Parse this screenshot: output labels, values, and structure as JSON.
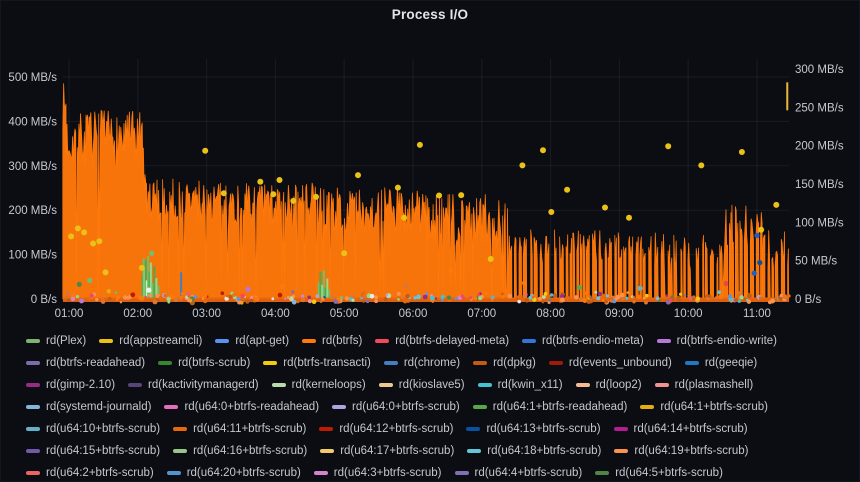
{
  "panel": {
    "title": "Process I/O"
  },
  "chart_data": {
    "type": "area",
    "title": "Process I/O",
    "x_unit": "time",
    "x_ticks": [
      {
        "t": 1,
        "label": "01:00"
      },
      {
        "t": 2,
        "label": "02:00"
      },
      {
        "t": 3,
        "label": "03:00"
      },
      {
        "t": 4,
        "label": "04:00"
      },
      {
        "t": 5,
        "label": "05:00"
      },
      {
        "t": 6,
        "label": "06:00"
      },
      {
        "t": 7,
        "label": "07:00"
      },
      {
        "t": 8,
        "label": "08:00"
      },
      {
        "t": 9,
        "label": "09:00"
      },
      {
        "t": 10,
        "label": "10:00"
      },
      {
        "t": 11,
        "label": "11:00"
      }
    ],
    "x_range_hours": [
      0.91,
      11.47
    ],
    "grid": true,
    "y_axis_left": {
      "unit": "MB/s",
      "max": 520,
      "ticks": [
        {
          "v": 500,
          "label": "500 MB/s"
        },
        {
          "v": 400,
          "label": "400 MB/s"
        },
        {
          "v": 300,
          "label": "300 MB/s"
        },
        {
          "v": 200,
          "label": "200 MB/s"
        },
        {
          "v": 100,
          "label": "100 MB/s"
        },
        {
          "v": 0,
          "label": "0 B/s"
        }
      ]
    },
    "y_axis_right": {
      "unit": "MB/s",
      "max": 320,
      "ticks": [
        {
          "v": 300,
          "label": "300 MB/s"
        },
        {
          "v": 250,
          "label": "250 MB/s"
        },
        {
          "v": 200,
          "label": "200 MB/s"
        },
        {
          "v": 150,
          "label": "150 MB/s"
        },
        {
          "v": 100,
          "label": "100 MB/s"
        },
        {
          "v": 50,
          "label": "50 MB/s"
        },
        {
          "v": 0,
          "label": "0 B/s"
        }
      ]
    },
    "main_series": {
      "name": "rd(btrfs)",
      "color": "#FF780A",
      "axis": "left",
      "segments": [
        {
          "from": 0.91,
          "to": 0.96,
          "min": 380,
          "max": 488
        },
        {
          "from": 0.96,
          "to": 2.07,
          "min": 295,
          "max": 425,
          "dip": 0.04
        },
        {
          "from": 2.07,
          "to": 2.13,
          "min": 120,
          "max": 345,
          "dip": 0.1
        },
        {
          "from": 2.13,
          "to": 3.2,
          "min": 165,
          "max": 272,
          "dip": 0.07
        },
        {
          "from": 3.2,
          "to": 4.6,
          "min": 155,
          "max": 262,
          "dip": 0.07
        },
        {
          "from": 4.6,
          "to": 6.2,
          "min": 145,
          "max": 252,
          "dip": 0.08
        },
        {
          "from": 6.2,
          "to": 7.4,
          "min": 110,
          "max": 238,
          "dip": 0.14
        },
        {
          "from": 7.4,
          "to": 8.15,
          "min": 80,
          "max": 162,
          "mode": "bursts",
          "fill": 0.5
        },
        {
          "from": 8.15,
          "to": 9.0,
          "min": 85,
          "max": 155,
          "mode": "bursts",
          "fill": 0.6
        },
        {
          "from": 9.0,
          "to": 9.75,
          "min": 70,
          "max": 150,
          "mode": "bursts",
          "fill": 0.5
        },
        {
          "from": 9.75,
          "to": 10.55,
          "min": 65,
          "max": 145,
          "mode": "bursts",
          "fill": 0.45
        },
        {
          "from": 10.55,
          "to": 11.08,
          "min": 90,
          "max": 215,
          "mode": "bursts",
          "fill": 0.6
        },
        {
          "from": 11.08,
          "to": 11.46,
          "min": 60,
          "max": 155,
          "mode": "bursts",
          "fill": 0.5
        }
      ]
    },
    "spike_events": [
      {
        "t": 2.07,
        "to": 55,
        "color": "#56A64B"
      },
      {
        "t": 2.085,
        "to": 92,
        "color": "#73BF69"
      },
      {
        "t": 2.1,
        "to": 72,
        "color": "#96D98D"
      },
      {
        "t": 2.115,
        "to": 88,
        "color": "#56A64B"
      },
      {
        "t": 2.13,
        "to": 42,
        "color": "#C8F2C2"
      },
      {
        "t": 2.15,
        "to": 97,
        "color": "#73BF69"
      },
      {
        "t": 2.17,
        "to": 62,
        "color": "#56A64B"
      },
      {
        "t": 2.19,
        "to": 82,
        "color": "#96D98D"
      },
      {
        "t": 2.215,
        "to": 36,
        "color": "#73BF69"
      },
      {
        "t": 2.24,
        "to": 74,
        "color": "#56A64B"
      },
      {
        "t": 2.27,
        "to": 47,
        "color": "#96D98D"
      },
      {
        "t": 2.3,
        "to": 30,
        "color": "#73BF69"
      },
      {
        "t": 4.63,
        "to": 38,
        "color": "#73BF69"
      },
      {
        "t": 4.655,
        "to": 61,
        "color": "#56A64B"
      },
      {
        "t": 4.68,
        "to": 32,
        "color": "#96D98D"
      },
      {
        "t": 4.705,
        "to": 65,
        "color": "#73BF69"
      },
      {
        "t": 4.73,
        "to": 26,
        "color": "#56A64B"
      },
      {
        "t": 4.755,
        "to": 46,
        "color": "#96D98D"
      },
      {
        "t": 4.78,
        "to": 21,
        "color": "#73BF69"
      },
      {
        "t": 2.63,
        "to": 60,
        "color": "#447EBC"
      },
      {
        "t": 11.44,
        "from": 425,
        "to": 488,
        "color": "#EAB839"
      }
    ],
    "scatter_yellow": {
      "name": "rd(appstreamcli)",
      "color": "#EAC117",
      "points": [
        [
          1.03,
          141
        ],
        [
          1.13,
          159
        ],
        [
          1.22,
          150
        ],
        [
          1.35,
          125
        ],
        [
          1.44,
          130
        ],
        [
          1.53,
          60
        ],
        [
          2.06,
          70
        ],
        [
          2.98,
          334
        ],
        [
          3.25,
          238
        ],
        [
          3.78,
          264
        ],
        [
          3.97,
          236
        ],
        [
          4.06,
          268
        ],
        [
          4.26,
          221
        ],
        [
          4.59,
          230
        ],
        [
          5.0,
          103
        ],
        [
          5.2,
          279
        ],
        [
          5.78,
          251
        ],
        [
          5.87,
          183
        ],
        [
          6.1,
          347
        ],
        [
          6.38,
          233
        ],
        [
          6.7,
          234
        ],
        [
          7.13,
          90
        ],
        [
          7.59,
          301
        ],
        [
          7.89,
          335
        ],
        [
          8.01,
          196
        ],
        [
          8.24,
          246
        ],
        [
          8.79,
          206
        ],
        [
          9.14,
          183
        ],
        [
          9.71,
          344
        ],
        [
          10.19,
          301
        ],
        [
          10.78,
          331
        ],
        [
          11.06,
          156
        ],
        [
          11.28,
          212
        ]
      ]
    },
    "other_dots": [
      {
        "t": 11.0,
        "v": 143,
        "color": "#1F60C4"
      },
      {
        "t": 11.04,
        "v": 82,
        "color": "#0A50A1"
      },
      {
        "t": 10.96,
        "v": 58,
        "color": "#1F60C4"
      },
      {
        "t": 2.2,
        "v": 103,
        "color": "#73BF69"
      },
      {
        "t": 2.16,
        "v": 20,
        "color": "#E8F4E8"
      },
      {
        "t": 1.15,
        "v": 33,
        "color": "#508642"
      },
      {
        "t": 1.3,
        "v": 42,
        "color": "#73BF69"
      },
      {
        "t": 4.1,
        "v": 28,
        "color": "#FF780A"
      },
      {
        "t": 5.9,
        "v": 30,
        "color": "#E0752D"
      },
      {
        "t": 7.62,
        "v": 36,
        "color": "#FF780A"
      },
      {
        "t": 10.55,
        "v": 35,
        "color": "#E24D42"
      },
      {
        "t": 3.6,
        "v": 22,
        "color": "#B877D9"
      },
      {
        "t": 8.42,
        "v": 26,
        "color": "#56A64B"
      },
      {
        "t": 9.3,
        "v": 24,
        "color": "#64B0C8"
      },
      {
        "t": 6.55,
        "v": 64,
        "color": "#FF780A"
      }
    ],
    "bottom_strip": {
      "count": 300,
      "v_max": 18,
      "base_color": "#E8650E",
      "palette_orange": [
        "#FF780A",
        "#E0752D",
        "#C15C17",
        "#F9934E",
        "#E8680D"
      ],
      "palette_other": [
        "#73BF69",
        "#508642",
        "#96D98D",
        "#B7DBAB",
        "#64B0C8",
        "#65C5DB",
        "#447EBC",
        "#5794F2",
        "#B877D9",
        "#D683CE",
        "#AEA2E0",
        "#F2495C",
        "#EA6460",
        "#F2CC0C",
        "#E5AC0E",
        "#82B5D8",
        "#962D82",
        "#F29191",
        "#45C2D1",
        "#806EB7",
        "#BF1B00",
        "#0A50A1",
        "#E8E8E8"
      ]
    }
  },
  "legend": {
    "rows": [
      [
        {
          "label": "rd(Plex)",
          "color": "#7EB26D"
        },
        {
          "label": "rd(appstreamcli)",
          "color": "#EAC117"
        },
        {
          "label": "rd(apt-get)",
          "color": "#5794F2"
        },
        {
          "label": "rd(btrfs)",
          "color": "#FF780A"
        },
        {
          "label": "rd(btrfs-delayed-meta)",
          "color": "#F2495C"
        },
        {
          "label": "rd(btrfs-endio-meta)",
          "color": "#3274D9"
        },
        {
          "label": "rd(btrfs-endio-write)",
          "color": "#B877D9"
        }
      ],
      [
        {
          "label": "rd(btrfs-readahead)",
          "color": "#7E6BAD"
        },
        {
          "label": "rd(btrfs-scrub)",
          "color": "#37872D"
        },
        {
          "label": "rd(btrfs-transacti)",
          "color": "#F2CC0C"
        },
        {
          "label": "rd(chrome)",
          "color": "#447EBC"
        },
        {
          "label": "rd(dpkg)",
          "color": "#C15C17"
        },
        {
          "label": "rd(events_unbound)",
          "color": "#9E1B0A"
        },
        {
          "label": "rd(geeqie)",
          "color": "#1F78C1"
        }
      ],
      [
        {
          "label": "rd(gimp-2.10)",
          "color": "#962D82"
        },
        {
          "label": "rd(kactivitymanagerd)",
          "color": "#584477"
        },
        {
          "label": "rd(kerneloops)",
          "color": "#B7DBAB"
        },
        {
          "label": "rd(kioslave5)",
          "color": "#EDC88C"
        },
        {
          "label": "rd(kwin_x11)",
          "color": "#45C2D1"
        },
        {
          "label": "rd(loop2)",
          "color": "#F9BA8F"
        },
        {
          "label": "rd(plasmashell)",
          "color": "#F29191"
        }
      ],
      [
        {
          "label": "rd(systemd-journald)",
          "color": "#82B5D8"
        },
        {
          "label": "rd(u64:0+btrfs-readahead)",
          "color": "#E36FBC"
        },
        {
          "label": "rd(u64:0+btrfs-scrub)",
          "color": "#AEA2E0"
        },
        {
          "label": "rd(u64:1+btrfs-readahead)",
          "color": "#56A64B"
        },
        {
          "label": "rd(u64:1+btrfs-scrub)",
          "color": "#E5AC0E"
        }
      ],
      [
        {
          "label": "rd(u64:10+btrfs-scrub)",
          "color": "#64B0C8"
        },
        {
          "label": "rd(u64:11+btrfs-scrub)",
          "color": "#E8680D"
        },
        {
          "label": "rd(u64:12+btrfs-scrub)",
          "color": "#BF1B00"
        },
        {
          "label": "rd(u64:13+btrfs-scrub)",
          "color": "#0A50A1"
        },
        {
          "label": "rd(u64:14+btrfs-scrub)",
          "color": "#B51C92"
        }
      ],
      [
        {
          "label": "rd(u64:15+btrfs-scrub)",
          "color": "#7159A6"
        },
        {
          "label": "rd(u64:16+btrfs-scrub)",
          "color": "#9AC48A"
        },
        {
          "label": "rd(u64:17+btrfs-scrub)",
          "color": "#F2C96D"
        },
        {
          "label": "rd(u64:18+btrfs-scrub)",
          "color": "#65C5DB"
        },
        {
          "label": "rd(u64:19+btrfs-scrub)",
          "color": "#F9934E"
        }
      ],
      [
        {
          "label": "rd(u64:2+btrfs-scrub)",
          "color": "#EA6460"
        },
        {
          "label": "rd(u64:20+btrfs-scrub)",
          "color": "#5195CE"
        },
        {
          "label": "rd(u64:3+btrfs-scrub)",
          "color": "#D683CE"
        },
        {
          "label": "rd(u64:4+btrfs-scrub)",
          "color": "#806EB7"
        },
        {
          "label": "rd(u64:5+btrfs-scrub)",
          "color": "#508642"
        }
      ]
    ]
  }
}
